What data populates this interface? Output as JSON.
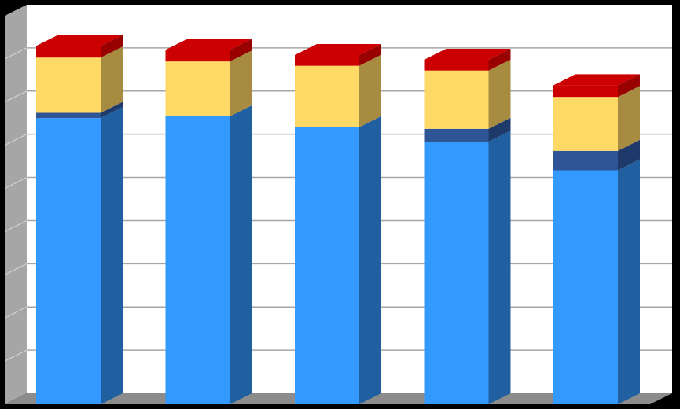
{
  "chart_data": {
    "type": "bar",
    "stacked": true,
    "three_d": true,
    "title": "",
    "xlabel": "",
    "ylabel": "",
    "categories": [
      "",
      "",
      "",
      "",
      ""
    ],
    "ylim": [
      0,
      9
    ],
    "gridlines": 9,
    "grid": true,
    "legend": "none",
    "series": [
      {
        "values": [
          6.63,
          6.67,
          6.42,
          6.08,
          5.42
        ],
        "color": "#3399FF",
        "side_color": "#2060A0"
      },
      {
        "values": [
          0.12,
          0.0,
          0.0,
          0.3,
          0.45
        ],
        "color": "#2F5597",
        "side_color": "#1E3A6B"
      },
      {
        "values": [
          1.28,
          1.27,
          1.42,
          1.35,
          1.25
        ],
        "color": "#FFD966",
        "side_color": "#A68B40"
      },
      {
        "values": [
          0.27,
          0.27,
          0.25,
          0.25,
          0.27
        ],
        "color": "#CC0000",
        "side_color": "#990000"
      }
    ],
    "colors": {
      "background": "#000000",
      "plot_area": "#FFFFFF",
      "wall": "#A6A6A6",
      "floor": "#8C8C8C",
      "gridline": "#A6A6A6"
    }
  }
}
